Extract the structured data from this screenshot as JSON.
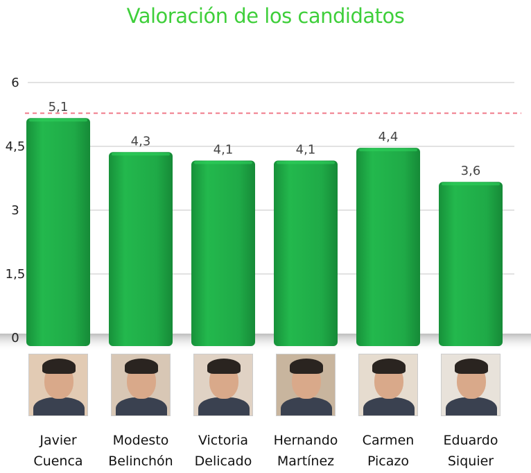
{
  "chart_data": {
    "type": "bar",
    "title": "Valoración de los candidatos",
    "xlabel": "",
    "ylabel": "",
    "ylim": [
      0,
      6
    ],
    "yticks": [
      "0",
      "1,5",
      "3",
      "4,5",
      "6"
    ],
    "ytick_values": [
      0,
      1.5,
      3,
      4.5,
      6
    ],
    "categories": [
      {
        "line1": "Javier",
        "line2": "Cuenca"
      },
      {
        "line1": "Modesto",
        "line2": "Belinchón"
      },
      {
        "line1": "Victoria",
        "line2": "Delicado"
      },
      {
        "line1": "Hernando",
        "line2": "Martínez"
      },
      {
        "line1": "Carmen",
        "line2": "Picazo"
      },
      {
        "line1": "Eduardo",
        "line2": "Siquier"
      }
    ],
    "values": [
      5.1,
      4.3,
      4.1,
      4.1,
      4.4,
      3.6
    ],
    "value_labels": [
      "5,1",
      "4,3",
      "4,1",
      "4,1",
      "4,4",
      "3,6"
    ],
    "reference_line": 5.1,
    "grid": true,
    "colors": {
      "bar": "#1ea845",
      "title": "#3fcf3b",
      "reference_line": "#f07a8a",
      "grid": "#d9d9d9"
    }
  }
}
